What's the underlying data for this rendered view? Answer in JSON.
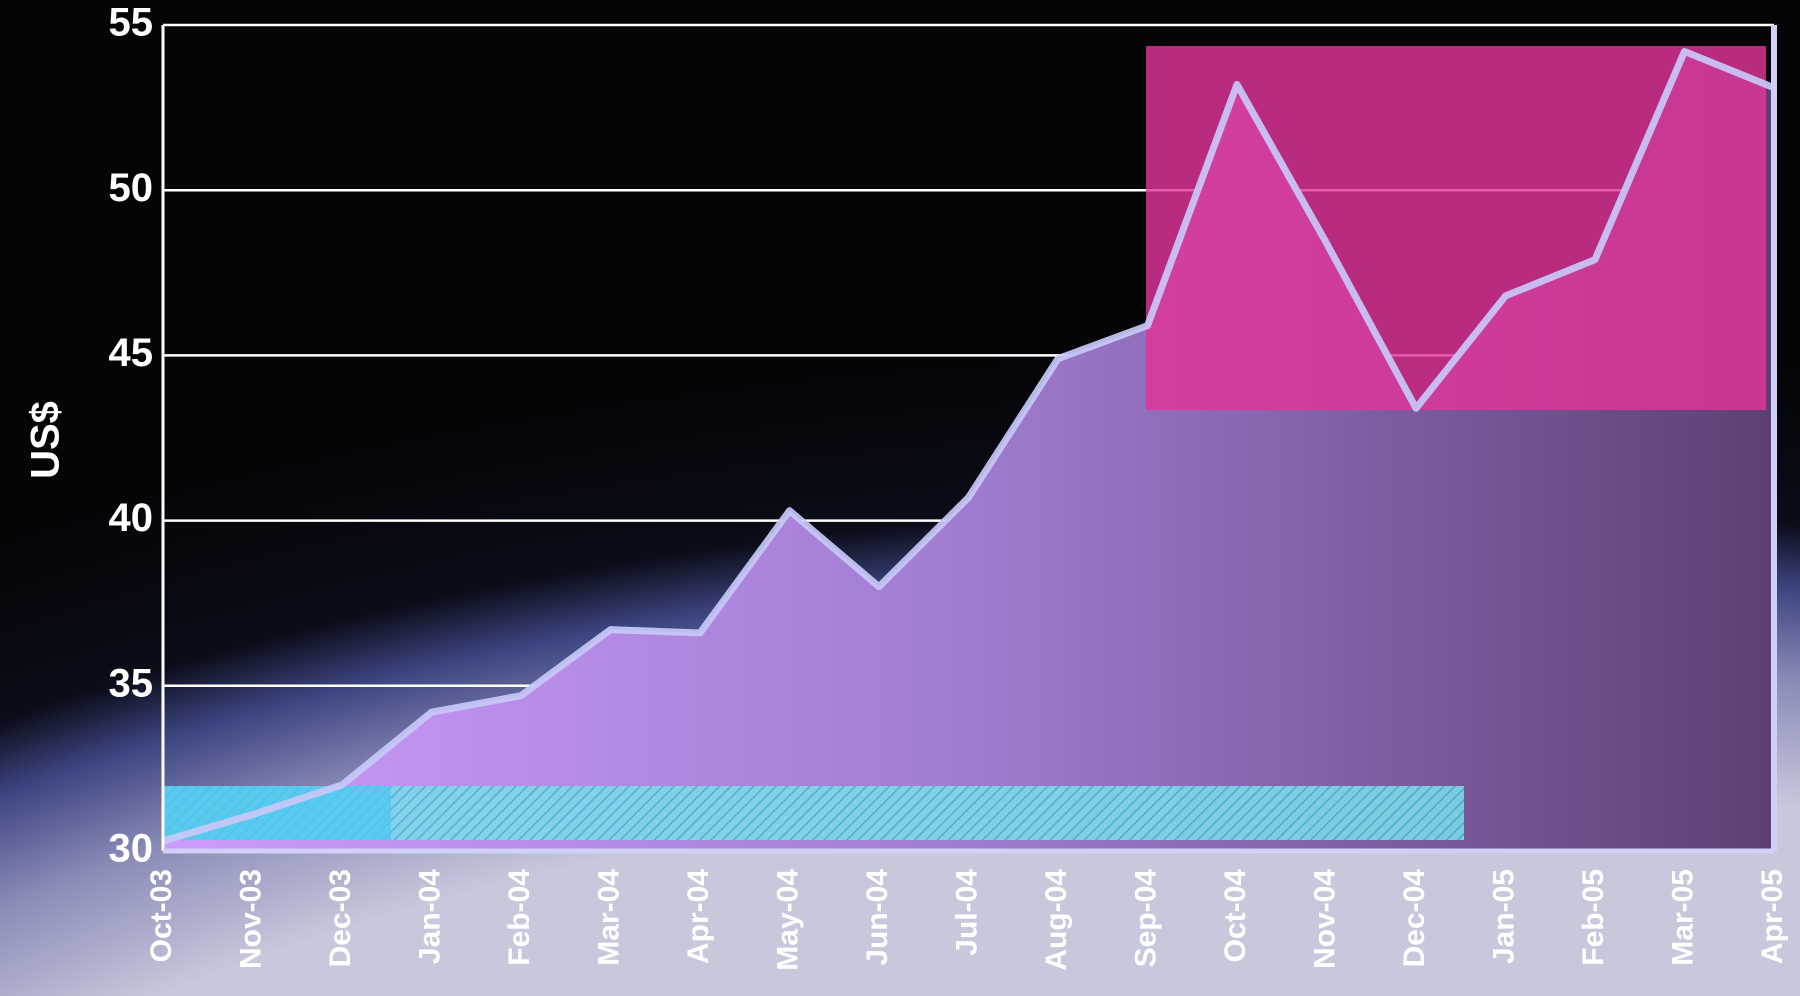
{
  "chart_data": {
    "type": "area",
    "y_label": "US$",
    "categories": [
      "Oct-03",
      "Nov-03",
      "Dec-03",
      "Jan-04",
      "Feb-04",
      "Mar-04",
      "Apr-04",
      "May-04",
      "Jun-04",
      "Jul-04",
      "Aug-04",
      "Sep-04",
      "Oct-04",
      "Nov-04",
      "Dec-04",
      "Jan-05",
      "Feb-05",
      "Mar-05",
      "Apr-05"
    ],
    "series": [
      {
        "name": "US$",
        "color": "#c8c8f8",
        "values": [
          30.3,
          31.1,
          32.0,
          34.2,
          34.7,
          36.7,
          36.6,
          40.3,
          38.0,
          40.7,
          44.9,
          45.9,
          53.2,
          48.4,
          43.4,
          46.8,
          47.9,
          54.2,
          53.1
        ]
      }
    ],
    "ylim": [
      30,
      55
    ],
    "yticks": [
      30,
      35,
      40,
      45,
      50,
      55
    ],
    "grid": true
  }
}
